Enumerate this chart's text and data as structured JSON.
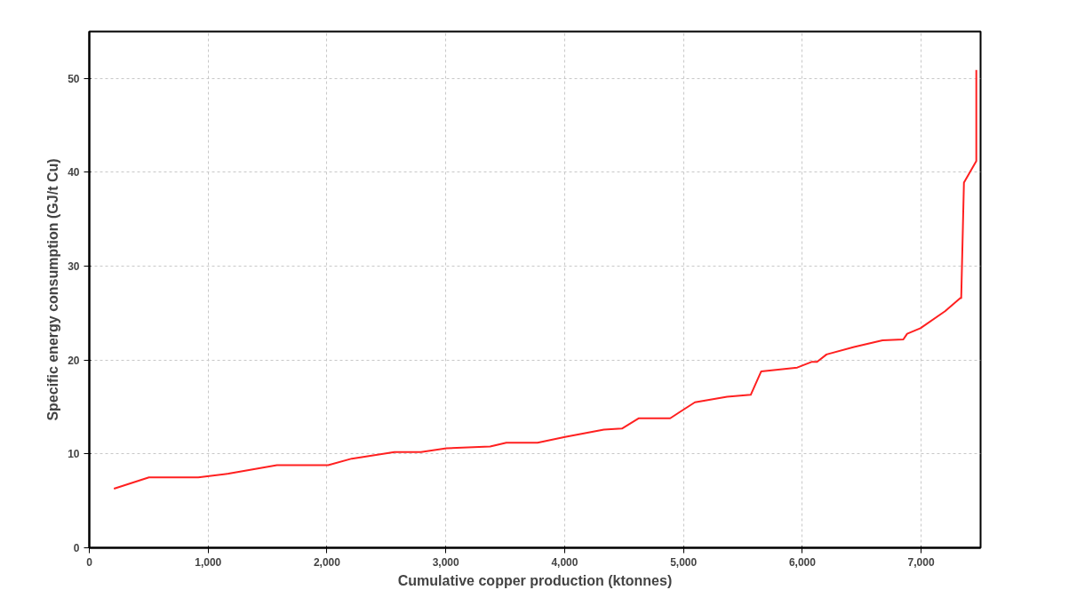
{
  "chart_data": {
    "type": "line",
    "xlabel": "Cumulative copper production (ktonnes)",
    "ylabel": "Specific energy consumption (GJ/t Cu)",
    "x": [
      207,
      502,
      917,
      1172,
      1579,
      2010,
      2209,
      2568,
      2791,
      3006,
      3373,
      3509,
      3772,
      4003,
      4330,
      4482,
      4625,
      4888,
      5096,
      5367,
      5566,
      5654,
      5957,
      6077,
      6124,
      6204,
      6435,
      6675,
      6850,
      6882,
      6994,
      7201,
      7329,
      7337,
      7360,
      7464,
      7464
    ],
    "series": [
      {
        "color": "#ff2020",
        "values": [
          6.3,
          7.5,
          7.5,
          7.9,
          8.8,
          8.8,
          9.5,
          10.2,
          10.2,
          10.6,
          10.8,
          11.2,
          11.2,
          11.8,
          12.6,
          12.7,
          13.8,
          13.8,
          15.5,
          16.1,
          16.3,
          18.8,
          19.2,
          19.8,
          19.8,
          20.6,
          21.4,
          22.1,
          22.2,
          22.8,
          23.4,
          25.2,
          26.6,
          26.6,
          38.9,
          41.2,
          50.9
        ]
      }
    ],
    "xlim": [
      0,
      7500
    ],
    "ylim": [
      0,
      55
    ],
    "xticks": [
      0,
      {
        "value": 1000,
        "label": "1,000"
      },
      {
        "value": 2000,
        "label": "2,000"
      },
      {
        "value": 3000,
        "label": "3,000"
      },
      {
        "value": 4000,
        "label": "4,000"
      },
      {
        "value": 5000,
        "label": "5,000"
      },
      {
        "value": 6000,
        "label": "6,000"
      },
      {
        "value": 7000,
        "label": "7,000"
      }
    ],
    "yticks": [
      0,
      10,
      20,
      30,
      40,
      50
    ],
    "grid": true,
    "line_style": "solid",
    "marker": "none"
  }
}
